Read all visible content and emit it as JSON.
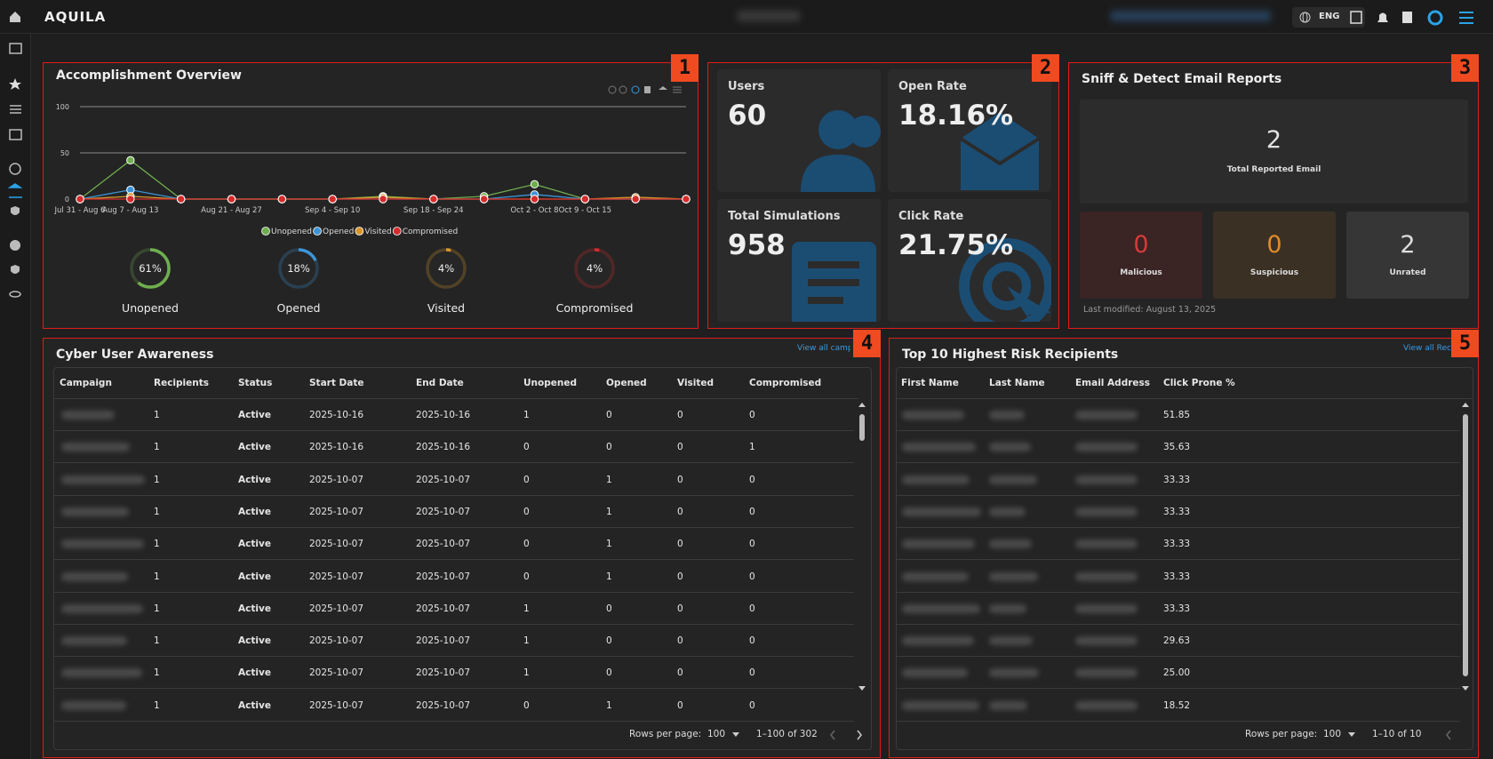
{
  "header": {
    "brand": "AQUILA",
    "language": "ENG"
  },
  "markers": [
    "1",
    "2",
    "3",
    "4",
    "5"
  ],
  "chart_data": [
    {
      "type": "line",
      "title": "Accomplishment Overview",
      "categories": [
        "Jul 31 - Aug 6",
        "Aug 7 - Aug 13",
        null,
        "Aug 21 - Aug 27",
        null,
        "Sep 4 - Sep 10",
        null,
        "Sep 18 - Sep 24",
        null,
        "Oct 2 - Oct 8",
        "Oct 9 - Oct 15",
        null,
        null
      ],
      "series": [
        {
          "name": "Unopened",
          "color": "#6fae4f",
          "values": [
            0,
            42,
            0,
            0,
            0,
            0,
            3,
            0,
            3,
            16,
            0,
            0,
            0
          ]
        },
        {
          "name": "Opened",
          "color": "#3c94d6",
          "values": [
            0,
            10,
            0,
            0,
            0,
            0,
            0,
            0,
            0,
            5,
            0,
            0,
            0
          ]
        },
        {
          "name": "Visited",
          "color": "#d8962c",
          "values": [
            0,
            3,
            0,
            0,
            0,
            0,
            2,
            0,
            0,
            0,
            0,
            2,
            0
          ]
        },
        {
          "name": "Compromised",
          "color": "#d62b2b",
          "values": [
            0,
            0,
            0,
            0,
            0,
            0,
            0,
            0,
            0,
            0,
            0,
            0,
            0
          ]
        }
      ],
      "ylim": [
        0,
        100
      ],
      "yticks": [
        0,
        50,
        100
      ],
      "grid": true,
      "legend": "bottom"
    },
    {
      "type": "donut",
      "categories": [
        "Unopened",
        "Opened",
        "Visited",
        "Compromised"
      ],
      "values": [
        61,
        18,
        4,
        4
      ],
      "value_labels": [
        "61%",
        "18%",
        "4%",
        "4%"
      ],
      "colors": [
        "#6fae4f",
        "#3c94d6",
        "#d8962c",
        "#d62b2b"
      ]
    }
  ],
  "stats": {
    "cards": [
      {
        "label": "Users",
        "value": "60"
      },
      {
        "label": "Open Rate",
        "value": "18.16%"
      },
      {
        "label": "Total Simulations",
        "value": "958"
      },
      {
        "label": "Click Rate",
        "value": "21.75%"
      }
    ]
  },
  "sniff": {
    "title": "Sniff & Detect Email Reports",
    "total": {
      "value": "2",
      "label": "Total Reported Email"
    },
    "tiles": [
      {
        "value": "0",
        "label": "Malicious"
      },
      {
        "value": "0",
        "label": "Suspicious"
      },
      {
        "value": "2",
        "label": "Unrated"
      }
    ],
    "modified": "Last modified: August 13, 2025"
  },
  "awareness": {
    "title": "Cyber User Awareness",
    "link": "View all campaigns",
    "columns": [
      "Campaign",
      "Recipients",
      "Status",
      "Start Date",
      "End Date",
      "Unopened",
      "Opened",
      "Visited",
      "Compromised"
    ],
    "rows": [
      [
        "1",
        "Active",
        "2025-10-16",
        "2025-10-16",
        "1",
        "0",
        "0",
        "0"
      ],
      [
        "1",
        "Active",
        "2025-10-16",
        "2025-10-16",
        "0",
        "0",
        "0",
        "1"
      ],
      [
        "1",
        "Active",
        "2025-10-07",
        "2025-10-07",
        "0",
        "1",
        "0",
        "0"
      ],
      [
        "1",
        "Active",
        "2025-10-07",
        "2025-10-07",
        "0",
        "1",
        "0",
        "0"
      ],
      [
        "1",
        "Active",
        "2025-10-07",
        "2025-10-07",
        "0",
        "1",
        "0",
        "0"
      ],
      [
        "1",
        "Active",
        "2025-10-07",
        "2025-10-07",
        "0",
        "1",
        "0",
        "0"
      ],
      [
        "1",
        "Active",
        "2025-10-07",
        "2025-10-07",
        "1",
        "0",
        "0",
        "0"
      ],
      [
        "1",
        "Active",
        "2025-10-07",
        "2025-10-07",
        "1",
        "0",
        "0",
        "0"
      ],
      [
        "1",
        "Active",
        "2025-10-07",
        "2025-10-07",
        "1",
        "0",
        "0",
        "0"
      ],
      [
        "1",
        "Active",
        "2025-10-07",
        "2025-10-07",
        "0",
        "1",
        "0",
        "0"
      ]
    ],
    "footer": {
      "rows_per_page_label": "Rows per page:",
      "rows_per_page": "100",
      "range": "1–100 of 302"
    }
  },
  "risk": {
    "title": "Top 10 Highest Risk Recipients",
    "link": "View all Recipients",
    "columns": [
      "First Name",
      "Last Name",
      "Email Address",
      "Click Prone %"
    ],
    "rows": [
      "51.85",
      "35.63",
      "33.33",
      "33.33",
      "33.33",
      "33.33",
      "33.33",
      "29.63",
      "25.00",
      "18.52"
    ],
    "footer": {
      "rows_per_page_label": "Rows per page:",
      "rows_per_page": "100",
      "range": "1–10 of 10"
    }
  }
}
